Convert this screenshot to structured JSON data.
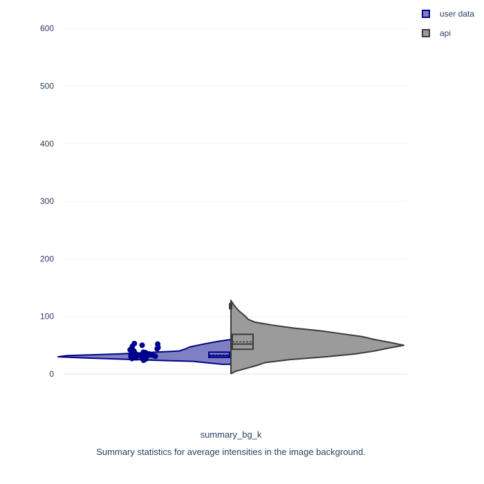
{
  "chart_data": {
    "type": "violin",
    "title": "",
    "xlabel": "summary_bg_k",
    "caption": "Summary statistics for average intensities in the image background.",
    "ylabel": "",
    "ylim": [
      -10,
      645
    ],
    "yticks": [
      0,
      100,
      200,
      300,
      400,
      500,
      600
    ],
    "grid": true,
    "legend_position": "top-right",
    "series": [
      {
        "name": "user data",
        "side": "negative",
        "fill": "#7f80c4",
        "line": "#00008b",
        "box": {
          "q1": 29,
          "median": 32,
          "mean": 33,
          "q3": 38
        },
        "density": [
          [
            17,
            0.05
          ],
          [
            22,
            0.22
          ],
          [
            25,
            0.55
          ],
          [
            28,
            0.85
          ],
          [
            30,
            1.0
          ],
          [
            32,
            0.95
          ],
          [
            35,
            0.65
          ],
          [
            40,
            0.3
          ],
          [
            44,
            0.26
          ],
          [
            47,
            0.24
          ],
          [
            52,
            0.16
          ],
          [
            57,
            0.07
          ],
          [
            60,
            0.0
          ]
        ],
        "points": [
          24,
          26,
          27,
          28,
          29,
          30,
          30,
          31,
          31,
          32,
          32,
          33,
          33,
          34,
          34,
          35,
          35,
          36,
          37,
          38,
          40,
          42,
          44,
          46,
          48,
          50,
          52,
          53
        ]
      },
      {
        "name": "api",
        "side": "positive",
        "fill": "#9b9b9b",
        "line": "#3a3a3a",
        "box": {
          "q1": 43,
          "median": 52,
          "mean": 56,
          "q3": 69
        },
        "outliers": [
          112,
          118,
          124
        ],
        "density": [
          [
            1,
            0.0
          ],
          [
            5,
            0.03
          ],
          [
            10,
            0.09
          ],
          [
            15,
            0.15
          ],
          [
            20,
            0.2
          ],
          [
            25,
            0.34
          ],
          [
            30,
            0.55
          ],
          [
            35,
            0.72
          ],
          [
            40,
            0.83
          ],
          [
            45,
            0.91
          ],
          [
            50,
            1.0
          ],
          [
            55,
            0.92
          ],
          [
            60,
            0.83
          ],
          [
            65,
            0.76
          ],
          [
            70,
            0.64
          ],
          [
            75,
            0.52
          ],
          [
            80,
            0.36
          ],
          [
            85,
            0.24
          ],
          [
            90,
            0.14
          ],
          [
            95,
            0.1
          ],
          [
            100,
            0.085
          ],
          [
            105,
            0.065
          ],
          [
            110,
            0.045
          ],
          [
            115,
            0.03
          ],
          [
            120,
            0.017
          ],
          [
            125,
            0.006
          ],
          [
            128,
            0.0
          ]
        ]
      }
    ]
  }
}
